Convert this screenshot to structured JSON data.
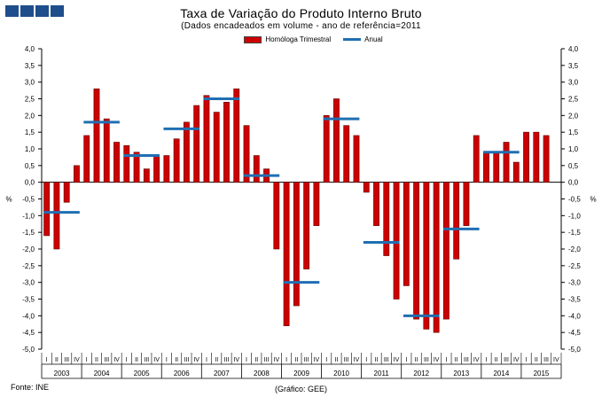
{
  "title": "Taxa de Variação do Produto Interno Bruto",
  "subtitle": "(Dados encadeados em volume  - ano de referência=2011",
  "source": "Fonte: INE",
  "credit": "(Gráfico: GEE)",
  "colors": {
    "bar": "#cc0000",
    "bar_edge": "#5a0000",
    "line": "#1f6fb2",
    "logo": "#1f4e8c"
  },
  "chart_data": {
    "type": "bar",
    "ylabel": "%",
    "ylim": [
      -5.0,
      4.0
    ],
    "ytick_labels": [
      "4,0",
      "3,5",
      "3,0",
      "2,5",
      "2,0",
      "1,5",
      "1,0",
      "0,5",
      "0,0",
      "-0,5",
      "-1,0",
      "-1,5",
      "-2,0",
      "-2,5",
      "-3,0",
      "-3,5",
      "-4,0",
      "-4,5",
      "-5,0"
    ],
    "years": [
      "2003",
      "2004",
      "2005",
      "2006",
      "2007",
      "2008",
      "2009",
      "2010",
      "2011",
      "2012",
      "2013",
      "2014",
      "2015"
    ],
    "quarter_labels": [
      "I",
      "II",
      "III",
      "IV"
    ],
    "legend_position": "top-center",
    "series": [
      {
        "name": "Homóloga Trimestral",
        "type": "bar",
        "values": [
          -1.6,
          -2.0,
          -0.6,
          0.5,
          1.4,
          2.8,
          1.9,
          1.2,
          1.1,
          0.9,
          0.4,
          0.8,
          0.8,
          1.3,
          1.8,
          2.3,
          2.6,
          2.1,
          2.4,
          2.8,
          1.7,
          0.8,
          0.4,
          -2.0,
          -4.3,
          -3.7,
          -2.6,
          -1.3,
          2.0,
          2.5,
          1.7,
          1.4,
          -0.3,
          -1.3,
          -2.2,
          -3.5,
          -3.1,
          -4.1,
          -4.4,
          -4.5,
          -4.1,
          -2.3,
          -1.3,
          1.4,
          0.9,
          0.9,
          1.2,
          0.6,
          1.5,
          1.5,
          1.4
        ]
      },
      {
        "name": "Anual",
        "type": "line",
        "values": [
          -0.9,
          1.8,
          0.8,
          1.6,
          2.5,
          0.2,
          -3.0,
          1.9,
          -1.8,
          -4.0,
          -1.4,
          0.9
        ]
      }
    ]
  }
}
